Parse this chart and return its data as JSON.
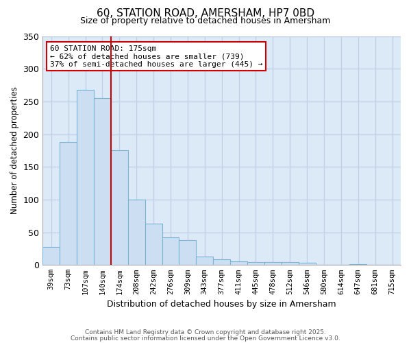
{
  "title": "60, STATION ROAD, AMERSHAM, HP7 0BD",
  "subtitle": "Size of property relative to detached houses in Amersham",
  "xlabel": "Distribution of detached houses by size in Amersham",
  "ylabel": "Number of detached properties",
  "bar_labels": [
    "39sqm",
    "73sqm",
    "107sqm",
    "140sqm",
    "174sqm",
    "208sqm",
    "242sqm",
    "276sqm",
    "309sqm",
    "343sqm",
    "377sqm",
    "411sqm",
    "445sqm",
    "478sqm",
    "512sqm",
    "546sqm",
    "580sqm",
    "614sqm",
    "647sqm",
    "681sqm",
    "715sqm"
  ],
  "bar_values": [
    28,
    188,
    268,
    255,
    175,
    100,
    63,
    42,
    38,
    13,
    9,
    6,
    5,
    4,
    4,
    3,
    0,
    0,
    1,
    0,
    0
  ],
  "bar_color": "#ccdff2",
  "bar_edge_color": "#7ab3d4",
  "ylim": [
    0,
    350
  ],
  "yticks": [
    0,
    50,
    100,
    150,
    200,
    250,
    300,
    350
  ],
  "marker_label_line1": "60 STATION ROAD: 175sqm",
  "marker_label_line2": "← 62% of detached houses are smaller (739)",
  "marker_label_line3": "37% of semi-detached houses are larger (445) →",
  "marker_color": "#cc0000",
  "plot_bg_color": "#dce9f7",
  "fig_bg_color": "#ffffff",
  "grid_color": "#c0d0e8",
  "footer_line1": "Contains HM Land Registry data © Crown copyright and database right 2025.",
  "footer_line2": "Contains public sector information licensed under the Open Government Licence v3.0."
}
